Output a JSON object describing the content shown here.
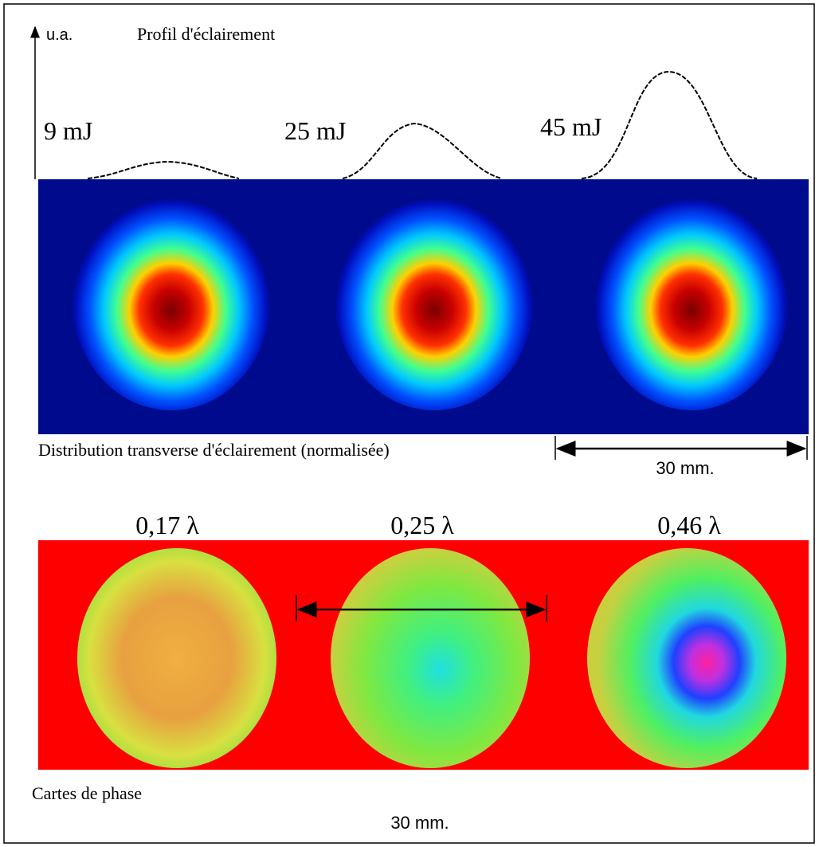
{
  "profile": {
    "axis_label": "u.a.",
    "title": "Profil d'éclairement",
    "energies": [
      "9 mJ",
      "25 mJ",
      "45 mJ"
    ]
  },
  "intensity": {
    "caption": "Distribution transverse d'éclairement (normalisée)",
    "scale": "30 mm."
  },
  "phase": {
    "labels": [
      "0,17 λ",
      "0,25 λ",
      "0,46 λ"
    ],
    "caption": "Cartes de phase",
    "scale": "30 mm."
  }
}
